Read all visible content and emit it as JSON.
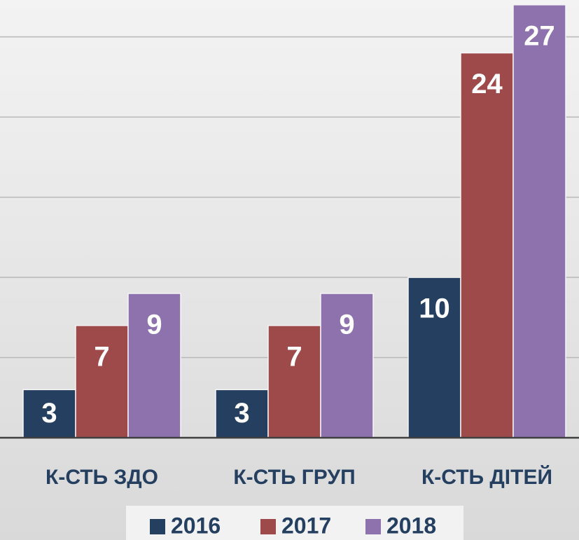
{
  "chart_data": {
    "type": "bar",
    "categories": [
      "К-СТЬ ЗДО",
      "К-СТЬ ГРУП",
      "К-СТЬ ДІТЕЙ"
    ],
    "series": [
      {
        "name": "2016",
        "color": "#243f60",
        "values": [
          3,
          3,
          10
        ]
      },
      {
        "name": "2017",
        "color": "#9e4a4a",
        "values": [
          7,
          7,
          24
        ]
      },
      {
        "name": "2018",
        "color": "#8e72ad",
        "values": [
          9,
          9,
          27
        ]
      }
    ],
    "ylim": [
      0,
      27.3
    ],
    "yticks": [
      0,
      5,
      10,
      15,
      20,
      25
    ],
    "grid": true,
    "legend": "bottom"
  }
}
